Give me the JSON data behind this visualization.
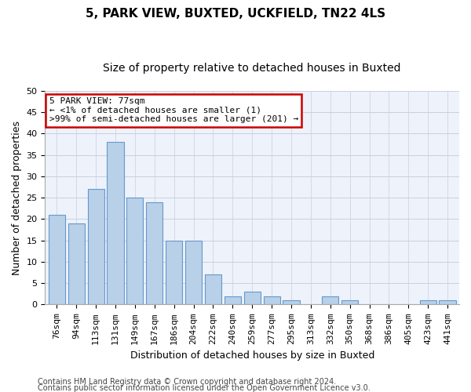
{
  "title1": "5, PARK VIEW, BUXTED, UCKFIELD, TN22 4LS",
  "title2": "Size of property relative to detached houses in Buxted",
  "xlabel": "Distribution of detached houses by size in Buxted",
  "ylabel": "Number of detached properties",
  "categories": [
    "76sqm",
    "94sqm",
    "113sqm",
    "131sqm",
    "149sqm",
    "167sqm",
    "186sqm",
    "204sqm",
    "222sqm",
    "240sqm",
    "259sqm",
    "277sqm",
    "295sqm",
    "313sqm",
    "332sqm",
    "350sqm",
    "368sqm",
    "386sqm",
    "405sqm",
    "423sqm",
    "441sqm"
  ],
  "values": [
    21,
    19,
    27,
    38,
    25,
    24,
    15,
    15,
    7,
    2,
    3,
    2,
    1,
    0,
    2,
    1,
    0,
    0,
    0,
    1,
    1
  ],
  "bar_color": "#b8d0e8",
  "bar_edge_color": "#6699cc",
  "annotation_line1": "5 PARK VIEW: 77sqm",
  "annotation_line2": "← <1% of detached houses are smaller (1)",
  "annotation_line3": ">99% of semi-detached houses are larger (201) →",
  "annotation_box_color": "#ffffff",
  "annotation_box_edge_color": "#cc0000",
  "ylim": [
    0,
    50
  ],
  "yticks": [
    0,
    5,
    10,
    15,
    20,
    25,
    30,
    35,
    40,
    45,
    50
  ],
  "footer1": "Contains HM Land Registry data © Crown copyright and database right 2024.",
  "footer2": "Contains public sector information licensed under the Open Government Licence v3.0.",
  "bg_color": "#eef2fb",
  "grid_color": "#c8cfe0",
  "title1_fontsize": 11,
  "title2_fontsize": 10,
  "axis_label_fontsize": 9,
  "tick_fontsize": 8,
  "annotation_fontsize": 8,
  "footer_fontsize": 7
}
